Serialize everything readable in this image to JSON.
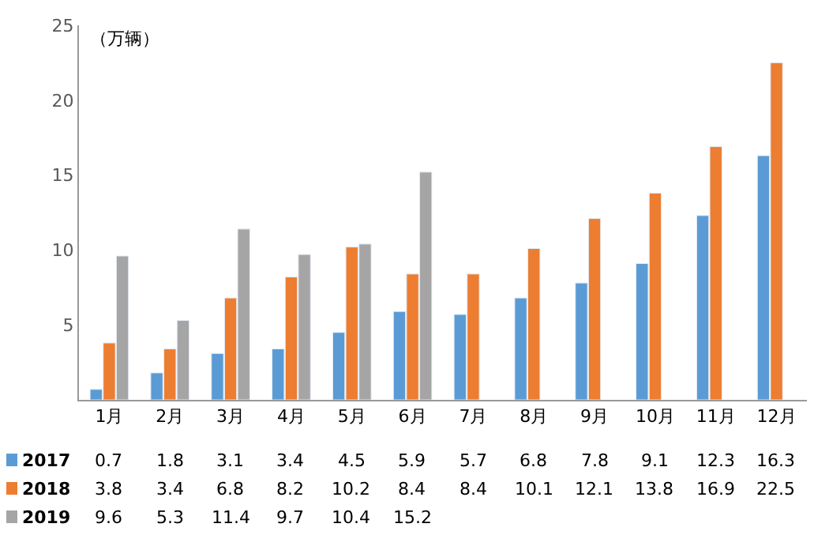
{
  "chart_data": {
    "type": "bar",
    "ylabel": "（万辆）",
    "categories": [
      "1月",
      "2月",
      "3月",
      "4月",
      "5月",
      "6月",
      "7月",
      "8月",
      "9月",
      "10月",
      "11月",
      "12月"
    ],
    "series": [
      {
        "name": "2017",
        "color": "#5b9bd5",
        "values": [
          0.7,
          1.8,
          3.1,
          3.4,
          4.5,
          5.9,
          5.7,
          6.8,
          7.8,
          9.1,
          12.3,
          16.3
        ]
      },
      {
        "name": "2018",
        "color": "#ed7d31",
        "values": [
          3.8,
          3.4,
          6.8,
          8.2,
          10.2,
          8.4,
          8.4,
          10.1,
          12.1,
          13.8,
          16.9,
          22.5
        ]
      },
      {
        "name": "2019",
        "color": "#a5a5a5",
        "values": [
          9.6,
          5.3,
          11.4,
          9.7,
          10.4,
          15.2,
          null,
          null,
          null,
          null,
          null,
          null
        ]
      }
    ],
    "ylim": [
      0,
      25
    ],
    "yticks": [
      5,
      10,
      15,
      20,
      25
    ],
    "legend": "bottom left",
    "data_labels": true
  }
}
